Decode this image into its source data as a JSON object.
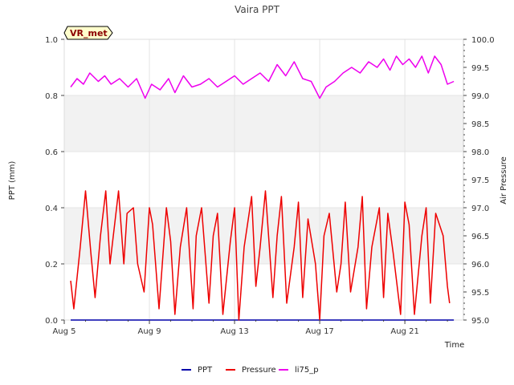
{
  "chart_data": {
    "type": "line",
    "title": "Vaira PPT",
    "site_label": "VR_met",
    "xlabel": "Time",
    "ylabel_left": "PPT (mm)",
    "ylabel_right": "Air Pressure",
    "x_start_day": 5,
    "x_end_day": 23,
    "xlim_days": [
      5,
      23.75
    ],
    "ylim_left": [
      0.0,
      1.0
    ],
    "ylim_right": [
      95.0,
      100.0
    ],
    "x_ticks": [
      {
        "day": 5,
        "label": "Aug 5"
      },
      {
        "day": 9,
        "label": "Aug 9"
      },
      {
        "day": 13,
        "label": "Aug 13"
      },
      {
        "day": 17,
        "label": "Aug 17"
      },
      {
        "day": 21,
        "label": "Aug 21"
      }
    ],
    "left_ticks": [
      "0.0",
      "0.2",
      "0.4",
      "0.6",
      "0.8",
      "1.0"
    ],
    "right_ticks": [
      "95.0",
      "95.5",
      "96.0",
      "96.5",
      "97.0",
      "97.5",
      "98.0",
      "98.5",
      "99.0",
      "99.5",
      "100.0"
    ],
    "bands": [
      [
        0.2,
        0.4
      ],
      [
        0.6,
        0.8
      ]
    ],
    "grid": true,
    "legend_position": "bottom-center",
    "series": [
      {
        "name": "PPT",
        "axis": "left",
        "color": "#0000aa",
        "x_days": [
          5.3,
          23.3
        ],
        "values": [
          0.0,
          0.0
        ]
      },
      {
        "name": "Pressure",
        "axis": "right",
        "color": "#ee0000",
        "x_days": [
          5.3,
          5.45,
          5.75,
          6.0,
          6.25,
          6.45,
          6.7,
          6.95,
          7.15,
          7.55,
          7.8,
          7.95,
          8.25,
          8.45,
          8.75,
          9.0,
          9.15,
          9.45,
          9.8,
          10.0,
          10.2,
          10.45,
          10.75,
          11.05,
          11.2,
          11.45,
          11.8,
          12.0,
          12.2,
          12.45,
          12.8,
          13.0,
          13.2,
          13.45,
          13.8,
          14.0,
          14.2,
          14.45,
          14.8,
          15.0,
          15.2,
          15.45,
          15.8,
          16.0,
          16.2,
          16.45,
          16.8,
          17.0,
          17.2,
          17.45,
          17.8,
          18.0,
          18.2,
          18.45,
          18.8,
          19.0,
          19.2,
          19.45,
          19.8,
          20.0,
          20.2,
          20.45,
          20.8,
          21.0,
          21.2,
          21.45,
          21.8,
          22.0,
          22.2,
          22.45,
          22.8,
          23.0,
          23.1
        ],
        "values": [
          95.7,
          95.2,
          96.3,
          97.3,
          96.2,
          95.4,
          96.5,
          97.3,
          96.0,
          97.3,
          96.0,
          96.9,
          97.0,
          96.0,
          95.5,
          97.0,
          96.7,
          95.2,
          97.0,
          96.4,
          95.1,
          96.3,
          97.0,
          95.2,
          96.5,
          97.0,
          95.3,
          96.5,
          96.9,
          95.1,
          96.4,
          97.0,
          95.0,
          96.3,
          97.2,
          95.6,
          96.3,
          97.3,
          95.4,
          96.5,
          97.2,
          95.3,
          96.3,
          97.1,
          95.4,
          96.8,
          96.0,
          95.0,
          96.5,
          96.9,
          95.5,
          96.0,
          97.1,
          95.5,
          96.3,
          97.2,
          95.2,
          96.3,
          97.0,
          95.4,
          96.9,
          96.2,
          95.1,
          97.1,
          96.7,
          95.1,
          96.5,
          97.0,
          95.3,
          96.9,
          96.5,
          95.6,
          95.3
        ]
      },
      {
        "name": "li75_p",
        "axis": "right",
        "color": "#ee00ee",
        "x_days": [
          5.3,
          5.6,
          5.9,
          6.2,
          6.6,
          6.9,
          7.2,
          7.6,
          8.0,
          8.4,
          8.8,
          9.1,
          9.5,
          9.9,
          10.2,
          10.6,
          11.0,
          11.4,
          11.8,
          12.2,
          12.6,
          13.0,
          13.4,
          13.8,
          14.2,
          14.6,
          15.0,
          15.4,
          15.8,
          16.2,
          16.6,
          17.0,
          17.3,
          17.7,
          18.1,
          18.5,
          18.9,
          19.3,
          19.7,
          20.0,
          20.3,
          20.6,
          20.9,
          21.2,
          21.5,
          21.8,
          22.1,
          22.4,
          22.7,
          23.0,
          23.3
        ],
        "values": [
          99.15,
          99.3,
          99.2,
          99.4,
          99.25,
          99.35,
          99.2,
          99.3,
          99.15,
          99.3,
          98.95,
          99.2,
          99.1,
          99.3,
          99.05,
          99.35,
          99.15,
          99.2,
          99.3,
          99.15,
          99.25,
          99.35,
          99.2,
          99.3,
          99.4,
          99.25,
          99.55,
          99.35,
          99.6,
          99.3,
          99.25,
          98.95,
          99.15,
          99.25,
          99.4,
          99.5,
          99.4,
          99.6,
          99.5,
          99.65,
          99.45,
          99.7,
          99.55,
          99.65,
          99.5,
          99.7,
          99.4,
          99.7,
          99.55,
          99.2,
          99.25
        ]
      }
    ]
  }
}
